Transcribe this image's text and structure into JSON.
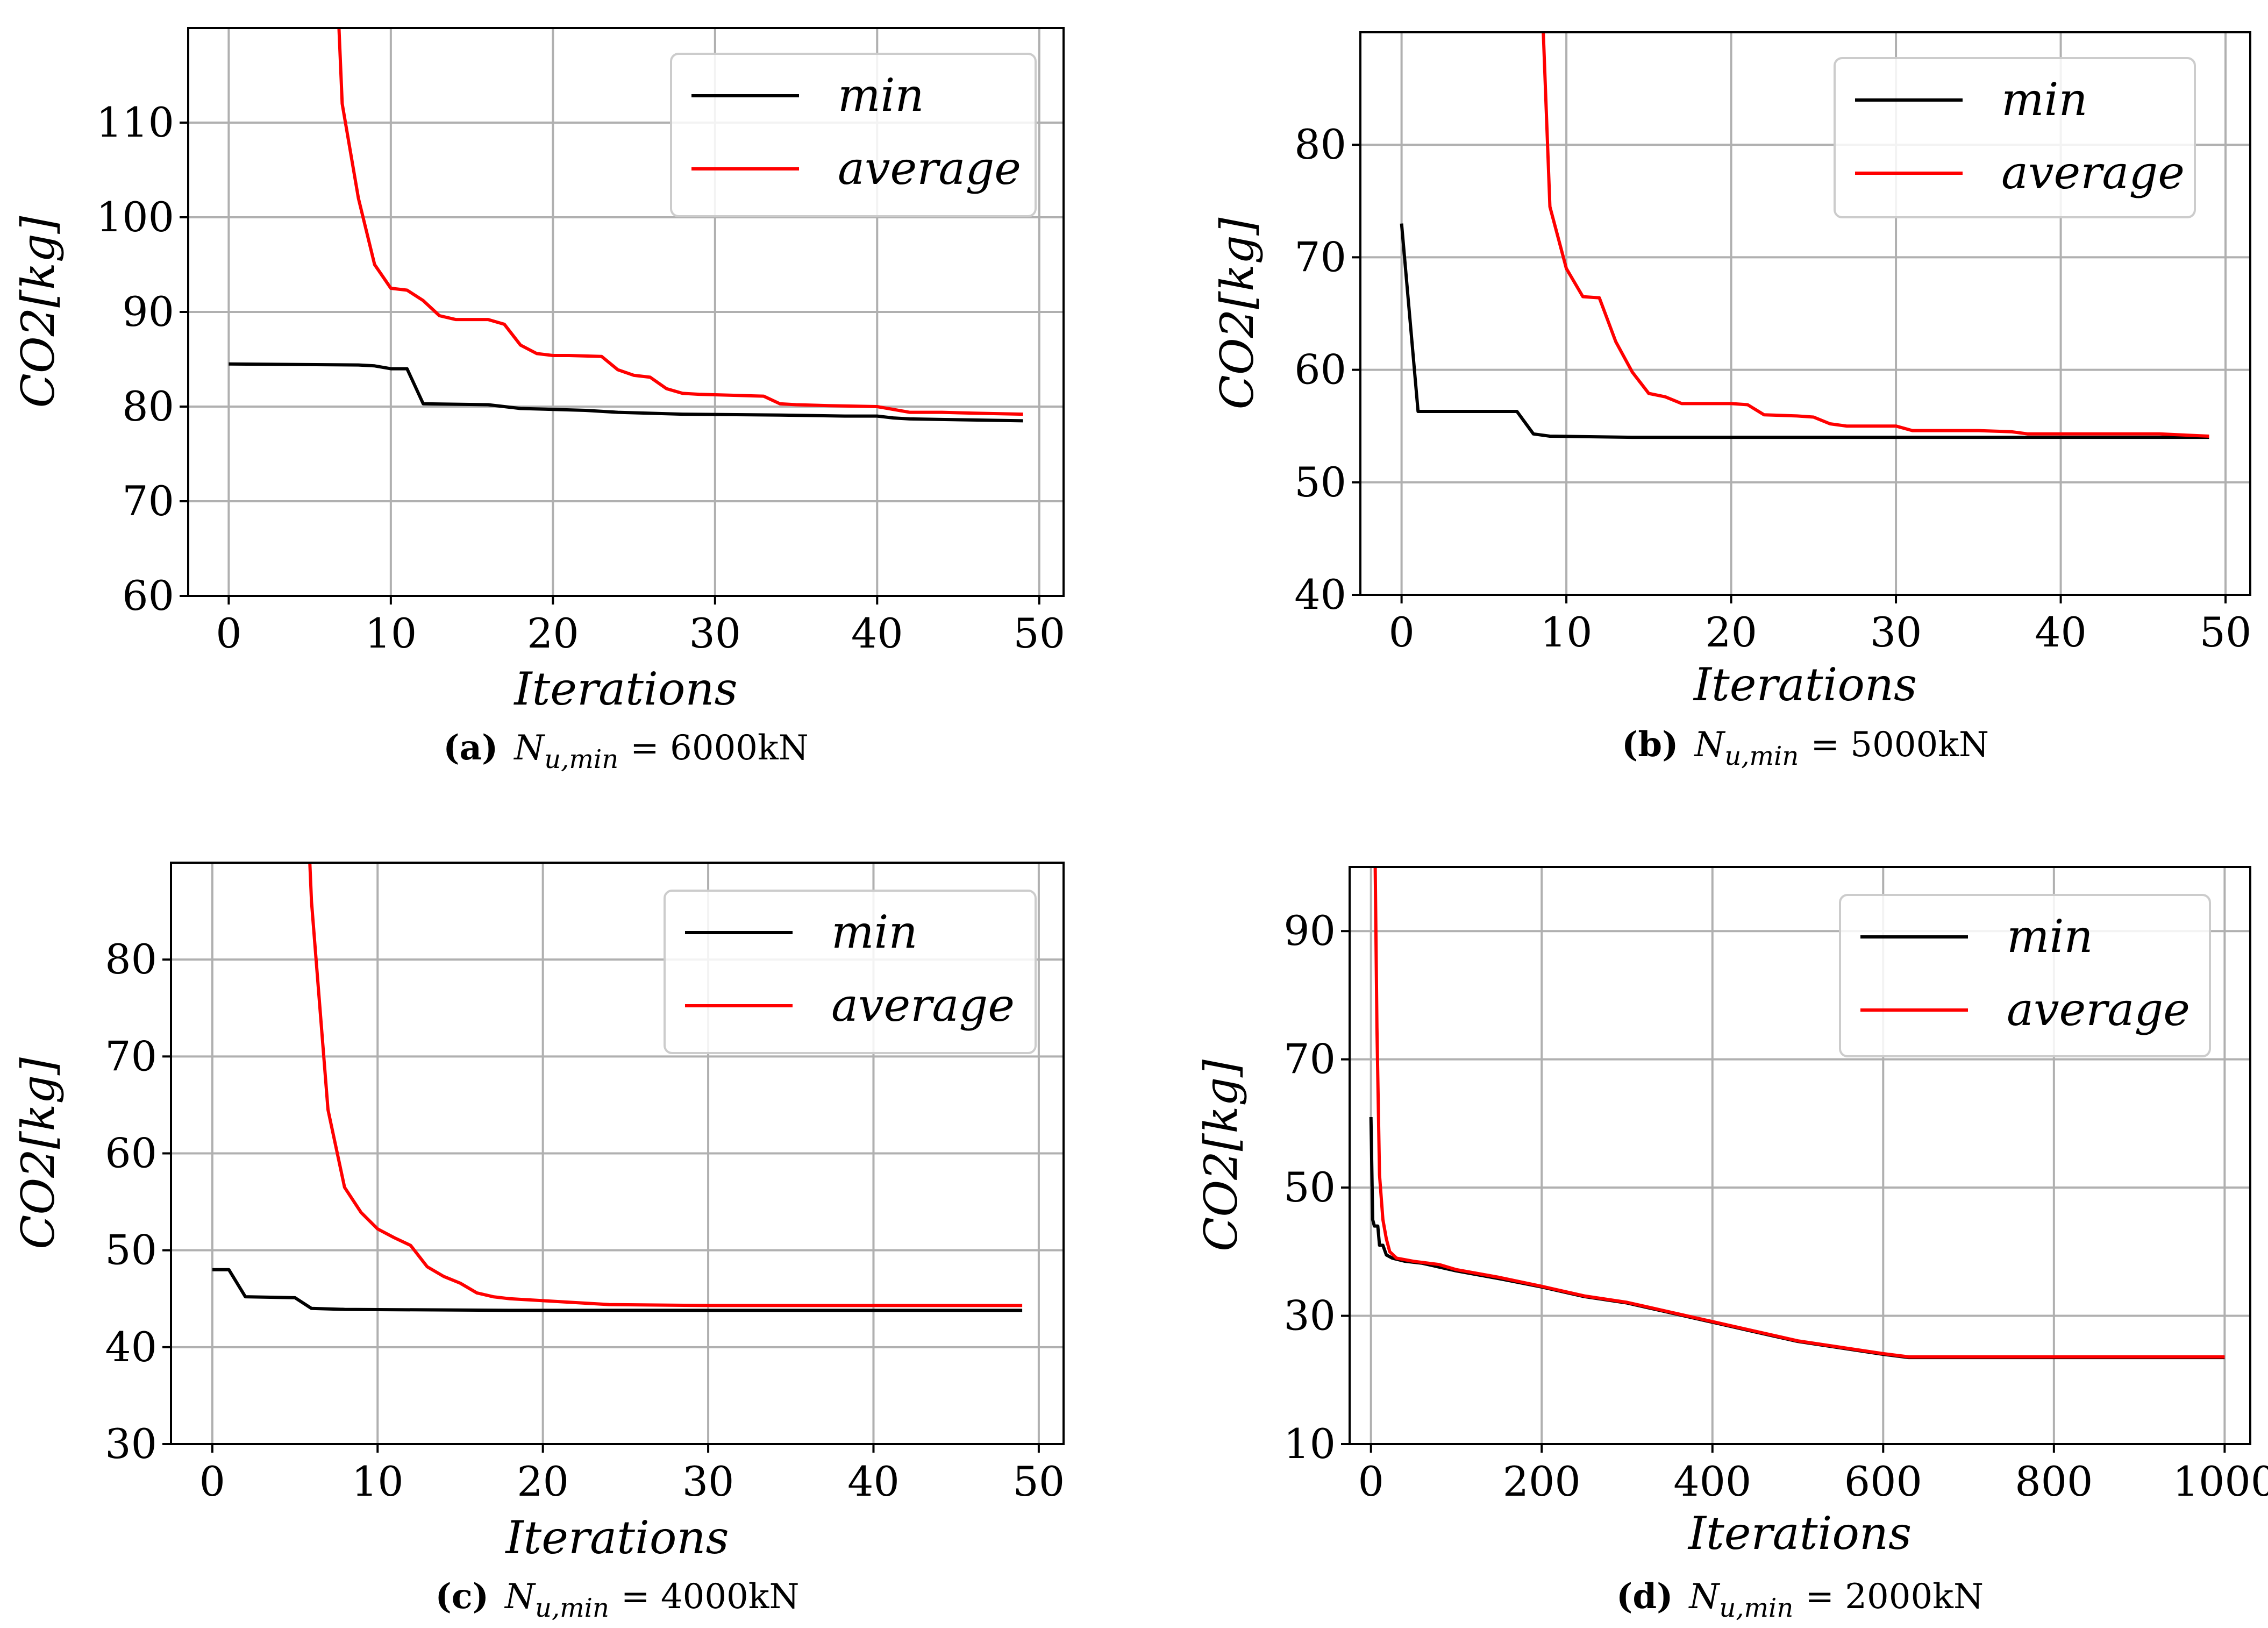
{
  "legend_colors": {
    "min": "#000000",
    "average": "#ff0000"
  },
  "chart_data": [
    {
      "id": "a",
      "type": "line",
      "caption": {
        "label": "(a)",
        "symbol": "N",
        "subscript": "u,min",
        "value": "= 6000kN"
      },
      "xlabel": "Iterations",
      "ylabel": "CO2[kg]",
      "xlim": [
        -2.5,
        51.5
      ],
      "ylim": [
        60,
        120
      ],
      "xticks": [
        0,
        10,
        20,
        30,
        40,
        50
      ],
      "yticks": [
        60,
        70,
        80,
        90,
        100,
        110
      ],
      "series": [
        {
          "name": "min",
          "color": "#000000",
          "x": [
            0,
            8,
            9,
            10,
            11,
            12,
            16,
            18,
            22,
            24,
            28,
            34,
            38,
            40,
            41,
            42,
            49
          ],
          "y": [
            84.5,
            84.4,
            84.3,
            84.0,
            84.0,
            80.3,
            80.2,
            79.8,
            79.6,
            79.4,
            79.2,
            79.1,
            79.0,
            79.0,
            78.8,
            78.7,
            78.5
          ]
        },
        {
          "name": "average",
          "color": "#ff0000",
          "x": [
            6.8,
            7,
            8,
            9,
            10,
            11,
            12,
            13,
            14,
            16,
            17,
            18,
            19,
            20,
            21,
            23,
            24,
            25,
            26,
            27,
            28,
            29,
            31,
            33,
            34,
            35,
            37,
            40,
            42,
            44,
            46,
            49
          ],
          "y": [
            120,
            112,
            102,
            95,
            92.5,
            92.3,
            91.2,
            89.6,
            89.2,
            89.2,
            88.7,
            86.5,
            85.6,
            85.4,
            85.4,
            85.3,
            83.9,
            83.3,
            83.1,
            81.9,
            81.4,
            81.3,
            81.2,
            81.1,
            80.3,
            80.2,
            80.1,
            80.0,
            79.4,
            79.4,
            79.3,
            79.2
          ]
        }
      ]
    },
    {
      "id": "b",
      "type": "line",
      "caption": {
        "label": "(b)",
        "symbol": "N",
        "subscript": "u,min",
        "value": "= 5000kN"
      },
      "xlabel": "Iterations",
      "ylabel": "CO2[kg]",
      "xlim": [
        -2.5,
        51.5
      ],
      "ylim": [
        40,
        90
      ],
      "xticks": [
        0,
        10,
        20,
        30,
        40,
        50
      ],
      "yticks": [
        40,
        50,
        60,
        70,
        80
      ],
      "series": [
        {
          "name": "min",
          "color": "#000000",
          "x": [
            0,
            1,
            7,
            8,
            9,
            14,
            20,
            30,
            40,
            49
          ],
          "y": [
            73,
            56.3,
            56.3,
            54.3,
            54.1,
            54.0,
            54.0,
            54.0,
            54.0,
            54.0
          ]
        },
        {
          "name": "average",
          "color": "#ff0000",
          "x": [
            8.6,
            9,
            10,
            11,
            12,
            13,
            14,
            15,
            16,
            17,
            20,
            21,
            22,
            24,
            25,
            26,
            27,
            30,
            31,
            35,
            37,
            38,
            40,
            46,
            49
          ],
          "y": [
            90,
            74.5,
            69,
            66.5,
            66.4,
            62.5,
            59.8,
            57.9,
            57.6,
            57.0,
            57.0,
            56.9,
            56.0,
            55.9,
            55.8,
            55.2,
            55.0,
            55.0,
            54.6,
            54.6,
            54.5,
            54.3,
            54.3,
            54.3,
            54.1
          ]
        }
      ]
    },
    {
      "id": "c",
      "type": "line",
      "caption": {
        "label": "(c)",
        "symbol": "N",
        "subscript": "u,min",
        "value": "= 4000kN"
      },
      "xlabel": "Iterations",
      "ylabel": "CO2[kg]",
      "xlim": [
        -2.5,
        51.5
      ],
      "ylim": [
        30,
        90
      ],
      "xticks": [
        0,
        10,
        20,
        30,
        40,
        50
      ],
      "yticks": [
        30,
        40,
        50,
        60,
        70,
        80
      ],
      "series": [
        {
          "name": "min",
          "color": "#000000",
          "x": [
            0,
            1,
            2,
            5,
            6,
            8,
            18,
            30,
            40,
            49
          ],
          "y": [
            48,
            48,
            45.2,
            45.1,
            44.0,
            43.9,
            43.8,
            43.8,
            43.8,
            43.8
          ]
        },
        {
          "name": "average",
          "color": "#ff0000",
          "x": [
            5.9,
            6,
            7,
            8,
            9,
            10,
            11,
            12,
            13,
            14,
            15,
            16,
            17,
            18,
            20,
            22,
            24,
            30,
            40,
            49
          ],
          "y": [
            90,
            86,
            64.5,
            56.5,
            53.9,
            52.2,
            51.3,
            50.5,
            48.3,
            47.3,
            46.6,
            45.6,
            45.2,
            45.0,
            44.8,
            44.6,
            44.4,
            44.3,
            44.3,
            44.3
          ]
        }
      ]
    },
    {
      "id": "d",
      "type": "line",
      "caption": {
        "label": "(d)",
        "symbol": "N",
        "subscript": "u,min",
        "value": "= 2000kN"
      },
      "xlabel": "Iterations",
      "ylabel": "CO2[kg]",
      "xlim": [
        -25,
        1030
      ],
      "ylim": [
        10,
        100
      ],
      "xticks": [
        0,
        200,
        400,
        600,
        800,
        1000
      ],
      "yticks": [
        10,
        30,
        50,
        70,
        90
      ],
      "series": [
        {
          "name": "min",
          "color": "#000000",
          "x": [
            0,
            2,
            4,
            8,
            10,
            14,
            18,
            25,
            40,
            60,
            100,
            150,
            200,
            250,
            300,
            350,
            400,
            450,
            500,
            550,
            600,
            630,
            700,
            800,
            1000
          ],
          "y": [
            61,
            45,
            44,
            44,
            41,
            41,
            39.5,
            39,
            38.5,
            38.2,
            37,
            35.8,
            34.5,
            33,
            32,
            30.5,
            29,
            27.5,
            26,
            25,
            24,
            23.5,
            23.5,
            23.5,
            23.5
          ]
        },
        {
          "name": "average",
          "color": "#ff0000",
          "x": [
            5,
            7,
            10,
            14,
            18,
            22,
            30,
            50,
            80,
            100,
            150,
            200,
            250,
            300,
            350,
            400,
            450,
            500,
            550,
            600,
            630,
            700,
            800,
            1000
          ],
          "y": [
            100,
            75,
            52,
            45,
            42,
            40,
            39,
            38.5,
            38,
            37.2,
            36,
            34.6,
            33.1,
            32.1,
            30.6,
            29.1,
            27.6,
            26.1,
            25.1,
            24.1,
            23.6,
            23.6,
            23.6,
            23.6
          ]
        }
      ]
    }
  ]
}
